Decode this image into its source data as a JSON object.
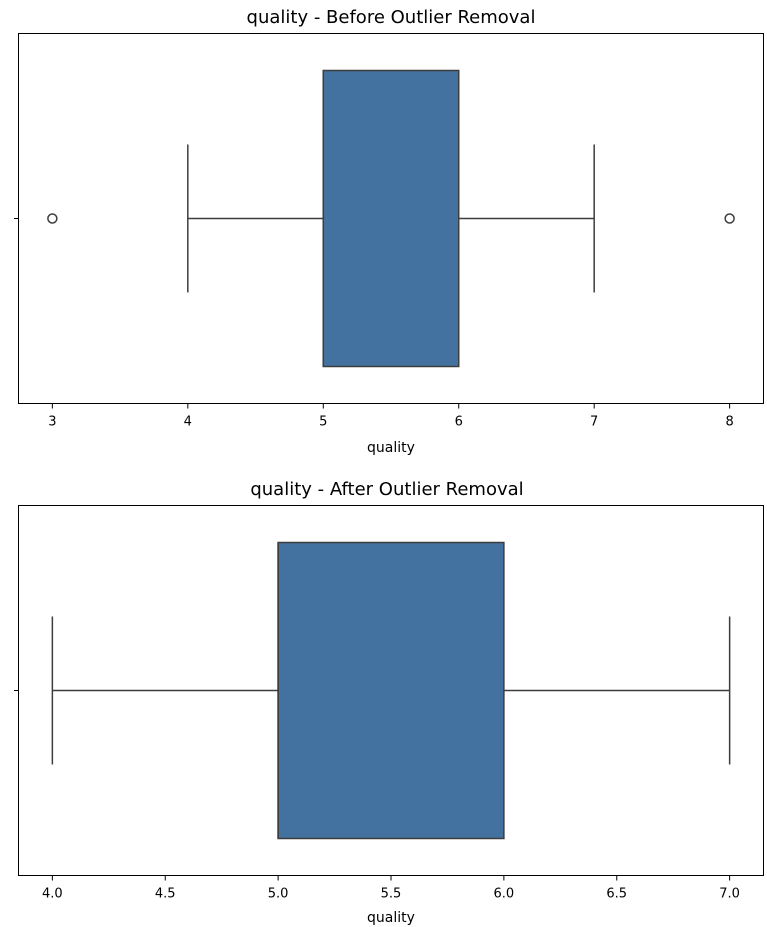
{
  "chart_data": [
    {
      "type": "box",
      "title": "quality - Before Outlier Removal",
      "xlabel": "quality",
      "ylabel": "",
      "xlim": [
        2.75,
        8.25
      ],
      "xticks": [
        3,
        4,
        5,
        6,
        7,
        8
      ],
      "xtick_labels": [
        "3",
        "4",
        "5",
        "6",
        "7",
        "8"
      ],
      "grid": false,
      "orientation": "horizontal",
      "box": {
        "whisker_low": 4,
        "q1": 5,
        "median": 5,
        "q3": 6,
        "whisker_high": 7,
        "outliers": [
          3,
          8
        ]
      },
      "colors": {
        "box_fill": "#4472a0",
        "line": "#3d3d3d"
      }
    },
    {
      "type": "box",
      "title": "quality - After Outlier Removal",
      "xlabel": "quality",
      "ylabel": "",
      "xlim": [
        3.85,
        7.15
      ],
      "xticks": [
        4.0,
        4.5,
        5.0,
        5.5,
        6.0,
        6.5,
        7.0
      ],
      "xtick_labels": [
        "4.0",
        "4.5",
        "5.0",
        "5.5",
        "6.0",
        "6.5",
        "7.0"
      ],
      "grid": false,
      "orientation": "horizontal",
      "box": {
        "whisker_low": 4,
        "q1": 5,
        "median": 5,
        "q3": 6,
        "whisker_high": 7,
        "outliers": []
      },
      "colors": {
        "box_fill": "#4472a0",
        "line": "#3d3d3d"
      }
    }
  ]
}
